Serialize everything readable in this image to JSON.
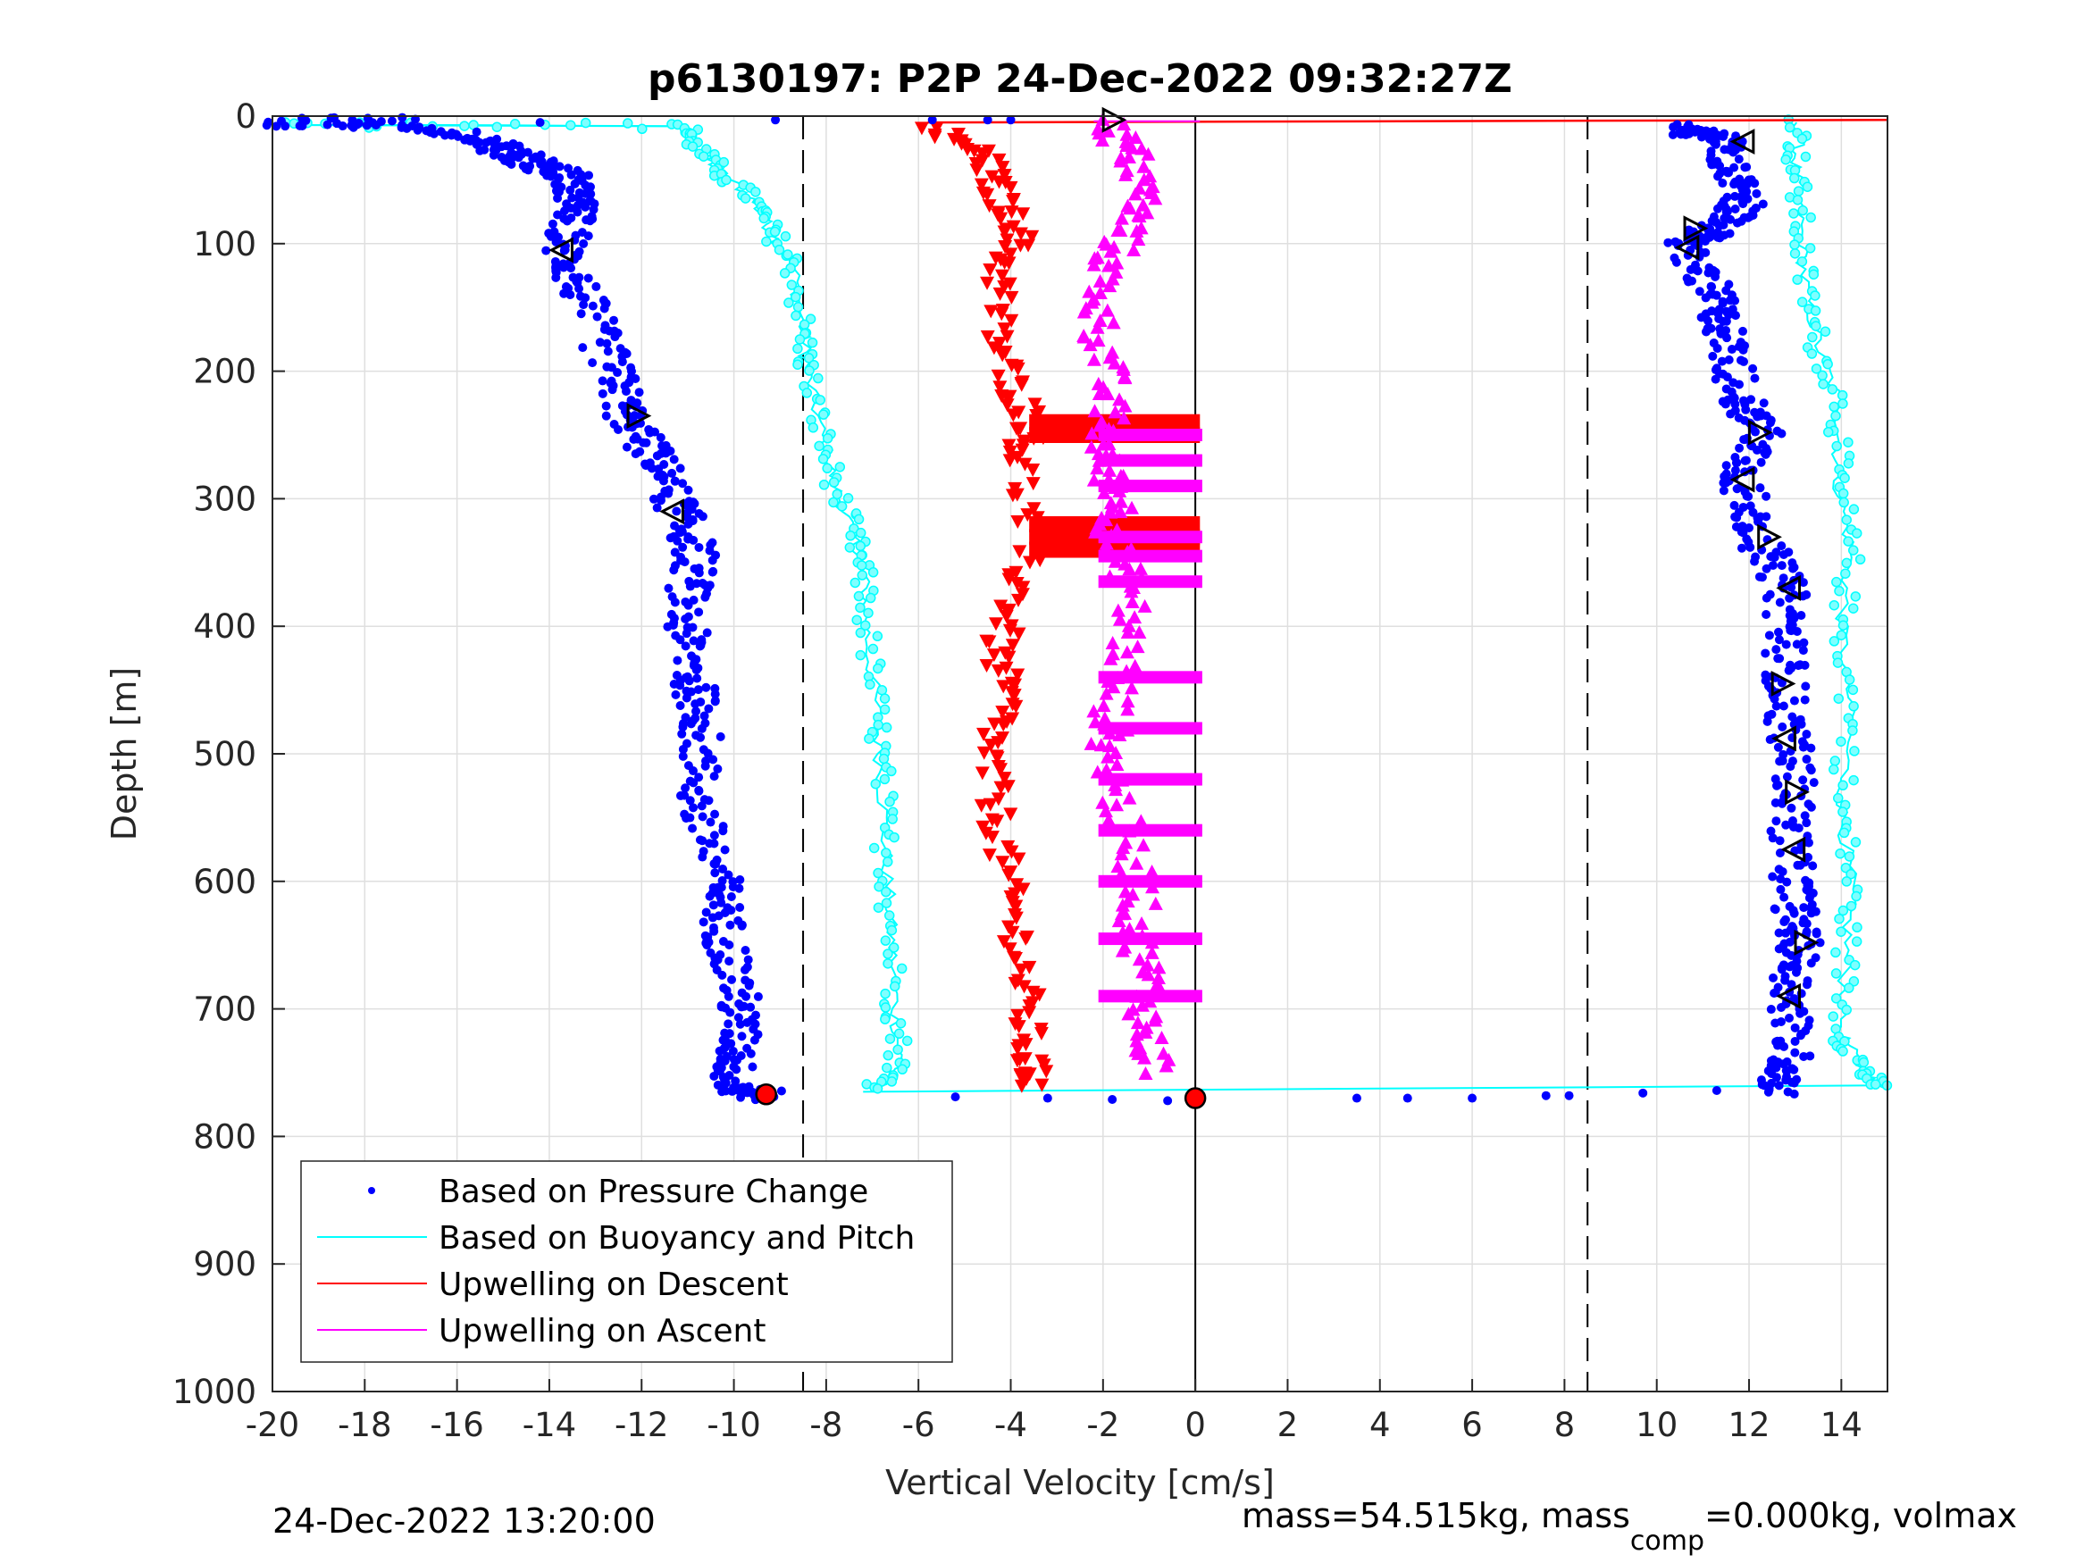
{
  "chart_data": {
    "type": "scatter",
    "title": "p6130197: P2P 24-Dec-2022 09:32:27Z",
    "xlabel": "Vertical Velocity [cm/s]",
    "ylabel": "Depth [m]",
    "xlim": [
      -20,
      15
    ],
    "ylim": [
      0,
      1000
    ],
    "y_reversed": true,
    "grid": true,
    "xticks": [
      "-20",
      "-18",
      "-16",
      "-14",
      "-12",
      "-10",
      "-8",
      "-6",
      "-4",
      "-2",
      "0",
      "2",
      "4",
      "6",
      "8",
      "10",
      "12",
      "14"
    ],
    "yticks": [
      "0",
      "100",
      "200",
      "300",
      "400",
      "500",
      "600",
      "700",
      "800",
      "900",
      "1000"
    ],
    "legend_position": "bottom-left",
    "reference_lines_x": [
      -8.5,
      0,
      8.5
    ],
    "series": [
      {
        "name": "Based on Pressure Change",
        "color": "#0000ff",
        "marker": "dot",
        "descent": [
          [
            -20,
            5
          ],
          [
            -17,
            5
          ],
          [
            -15.2,
            22
          ],
          [
            -14.6,
            32
          ],
          [
            -13.6,
            48
          ],
          [
            -13.4,
            70
          ],
          [
            -13.7,
            105
          ],
          [
            -13.3,
            140
          ],
          [
            -12.6,
            200
          ],
          [
            -12.3,
            238
          ],
          [
            -11.6,
            270
          ],
          [
            -11.2,
            310
          ],
          [
            -10.8,
            345
          ],
          [
            -11.1,
            390
          ],
          [
            -10.9,
            440
          ],
          [
            -10.7,
            480
          ],
          [
            -10.8,
            540
          ],
          [
            -10.3,
            600
          ],
          [
            -10.2,
            640
          ],
          [
            -9.9,
            690
          ],
          [
            -9.9,
            730
          ],
          [
            -10.1,
            760
          ],
          [
            -9.3,
            768
          ]
        ],
        "ascent": [
          [
            10.5,
            10
          ],
          [
            11.4,
            15
          ],
          [
            11.6,
            45
          ],
          [
            11.9,
            70
          ],
          [
            11.2,
            90
          ],
          [
            10.6,
            100
          ],
          [
            11.2,
            140
          ],
          [
            11.5,
            170
          ],
          [
            11.8,
            220
          ],
          [
            12.3,
            250
          ],
          [
            11.8,
            285
          ],
          [
            12.2,
            330
          ],
          [
            12.8,
            370
          ],
          [
            12.8,
            420
          ],
          [
            12.8,
            470
          ],
          [
            13.0,
            520
          ],
          [
            12.9,
            570
          ],
          [
            13.0,
            620
          ],
          [
            13.1,
            650
          ],
          [
            12.9,
            690
          ],
          [
            12.9,
            740
          ],
          [
            12.6,
            765
          ]
        ],
        "bottom_outliers": [
          [
            -5.2,
            769
          ],
          [
            -3.2,
            770
          ],
          [
            -1.8,
            771
          ],
          [
            -0.6,
            772
          ],
          [
            3.5,
            770
          ],
          [
            4.6,
            770
          ],
          [
            6.0,
            770
          ],
          [
            7.6,
            768
          ],
          [
            8.1,
            768
          ],
          [
            9.7,
            766
          ],
          [
            11.3,
            764
          ]
        ],
        "surface_outliers": [
          [
            -14.2,
            5
          ],
          [
            -5.7,
            3
          ],
          [
            -4.5,
            3
          ],
          [
            -4.0,
            3
          ],
          [
            -9.1,
            3
          ]
        ]
      },
      {
        "name": "Based on Buoyancy and Pitch",
        "color": "#00ffff",
        "marker": "open-circle-line",
        "descent": [
          [
            -19.8,
            7
          ],
          [
            -16,
            7
          ],
          [
            -11,
            8
          ],
          [
            -10.9,
            20
          ],
          [
            -10.4,
            40
          ],
          [
            -9.6,
            65
          ],
          [
            -9.2,
            90
          ],
          [
            -8.7,
            120
          ],
          [
            -8.5,
            170
          ],
          [
            -8.4,
            200
          ],
          [
            -8.1,
            250
          ],
          [
            -7.8,
            290
          ],
          [
            -7.4,
            330
          ],
          [
            -7.2,
            360
          ],
          [
            -7.1,
            410
          ],
          [
            -6.9,
            470
          ],
          [
            -6.8,
            520
          ],
          [
            -6.7,
            580
          ],
          [
            -6.6,
            640
          ],
          [
            -6.5,
            700
          ],
          [
            -6.4,
            745
          ],
          [
            -7.0,
            765
          ]
        ],
        "ascent": [
          [
            13.1,
            5
          ],
          [
            13.0,
            40
          ],
          [
            13.1,
            80
          ],
          [
            13.2,
            130
          ],
          [
            13.5,
            180
          ],
          [
            14.0,
            230
          ],
          [
            13.9,
            280
          ],
          [
            14.2,
            340
          ],
          [
            14.0,
            400
          ],
          [
            14.2,
            470
          ],
          [
            14.0,
            540
          ],
          [
            14.2,
            600
          ],
          [
            14.1,
            660
          ],
          [
            14.0,
            720
          ],
          [
            14.5,
            750
          ],
          [
            14.8,
            760
          ]
        ],
        "bottom_link": [
          [
            -7.2,
            765
          ],
          [
            14.8,
            760
          ]
        ]
      },
      {
        "name": "Upwelling on Descent",
        "color": "#ff0000",
        "marker": "down-triangle",
        "values": [
          [
            -5.8,
            10
          ],
          [
            -4.6,
            30
          ],
          [
            -4.3,
            60
          ],
          [
            -3.8,
            90
          ],
          [
            -4.2,
            120
          ],
          [
            -4.3,
            170
          ],
          [
            -4.0,
            210
          ],
          [
            -3.5,
            240
          ],
          [
            -3.8,
            270
          ],
          [
            -3.6,
            330
          ],
          [
            -3.9,
            380
          ],
          [
            -4.3,
            420
          ],
          [
            -4.1,
            460
          ],
          [
            -4.5,
            500
          ],
          [
            -4.3,
            550
          ],
          [
            -4.1,
            600
          ],
          [
            -3.8,
            650
          ],
          [
            -3.7,
            700
          ],
          [
            -3.6,
            740
          ],
          [
            -3.5,
            760
          ]
        ],
        "spikes": [
          240,
          250,
          320,
          330,
          340
        ],
        "surface_link": [
          [
            -5.8,
            5
          ],
          [
            15,
            3
          ]
        ]
      },
      {
        "name": "Upwelling on Ascent",
        "color": "#ff00ff",
        "marker": "up-triangle",
        "values": [
          [
            -1.9,
            5
          ],
          [
            -1.4,
            30
          ],
          [
            -1.1,
            60
          ],
          [
            -1.5,
            90
          ],
          [
            -2.0,
            120
          ],
          [
            -2.1,
            160
          ],
          [
            -1.9,
            200
          ],
          [
            -1.9,
            240
          ],
          [
            -2.0,
            270
          ],
          [
            -1.6,
            300
          ],
          [
            -1.8,
            330
          ],
          [
            -1.4,
            370
          ],
          [
            -1.5,
            420
          ],
          [
            -1.8,
            460
          ],
          [
            -1.9,
            500
          ],
          [
            -1.6,
            550
          ],
          [
            -1.2,
            600
          ],
          [
            -1.3,
            640
          ],
          [
            -1.0,
            680
          ],
          [
            -1.1,
            720
          ],
          [
            -0.8,
            750
          ]
        ],
        "spikes": [
          250,
          270,
          290,
          330,
          345,
          365,
          440,
          480,
          520,
          560,
          600,
          645,
          690
        ]
      }
    ],
    "markers": {
      "open_triangles_descent": [
        [
          -1.8,
          3
        ],
        [
          -13.7,
          105
        ],
        [
          -12.1,
          235
        ],
        [
          -11.3,
          310
        ]
      ],
      "open_triangles_ascent": [
        [
          11.9,
          20
        ],
        [
          10.8,
          88
        ],
        [
          10.7,
          103
        ],
        [
          12.2,
          248
        ],
        [
          11.9,
          285
        ],
        [
          12.4,
          330
        ],
        [
          12.9,
          370
        ],
        [
          12.7,
          445
        ],
        [
          12.8,
          488
        ],
        [
          13.0,
          530
        ],
        [
          13.0,
          575
        ],
        [
          13.2,
          648
        ],
        [
          12.9,
          690
        ]
      ],
      "bottom_star": [
        -9.3,
        767
      ],
      "bottom_star_right": [
        0,
        770
      ]
    }
  },
  "footer": {
    "date": "24-Dec-2022 13:20:00",
    "mass_prefix": "mass=54.515kg, mass",
    "mass_sub": "comp",
    "mass_suffix": "=0.000kg, volmax"
  }
}
